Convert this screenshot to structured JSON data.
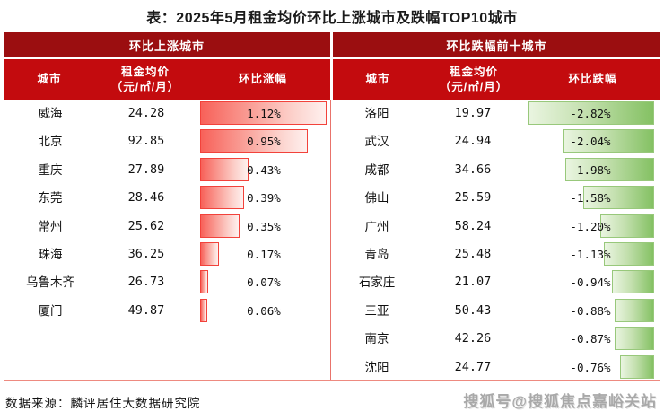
{
  "title": "表：2025年5月租金均价环比上涨城市及跌幅TOP10城市",
  "source": "数据来源：麟评居住大数据研究院",
  "watermark": "搜狐号@搜狐焦点嘉峪关站",
  "colors": {
    "band_dark_red": "#9B0E10",
    "band_bright_red": "#C30B0E",
    "table_border_pink": "#EE8A80",
    "up_bar_start": "#F86159",
    "up_bar_end": "#FEF1EF",
    "up_bar_border": "#F2423B",
    "down_bar_start": "#EAF5E1",
    "down_bar_end": "#84C163",
    "down_bar_border": "#98C87B"
  },
  "left": {
    "section_title": "环比上涨城市",
    "col_city": "城市",
    "col_rent": "租金均价",
    "col_rent_unit": "（元/㎡/月）",
    "col_change": "环比涨幅",
    "max_abs": 1.12,
    "rows": [
      {
        "city": "威海",
        "rent": "24.28",
        "pct": "1.12%",
        "value": 1.12
      },
      {
        "city": "北京",
        "rent": "92.85",
        "pct": "0.95%",
        "value": 0.95
      },
      {
        "city": "重庆",
        "rent": "27.89",
        "pct": "0.43%",
        "value": 0.43
      },
      {
        "city": "东莞",
        "rent": "28.46",
        "pct": "0.39%",
        "value": 0.39
      },
      {
        "city": "常州",
        "rent": "25.62",
        "pct": "0.35%",
        "value": 0.35
      },
      {
        "city": "珠海",
        "rent": "36.25",
        "pct": "0.17%",
        "value": 0.17
      },
      {
        "city": "乌鲁木齐",
        "rent": "26.73",
        "pct": "0.07%",
        "value": 0.07
      },
      {
        "city": "厦门",
        "rent": "49.87",
        "pct": "0.06%",
        "value": 0.06
      }
    ]
  },
  "right": {
    "section_title": "环比跌幅前十城市",
    "col_city": "城市",
    "col_rent": "租金均价",
    "col_rent_unit": "（元/㎡/月）",
    "col_change": "环比跌幅",
    "max_abs": 2.82,
    "rows": [
      {
        "city": "洛阳",
        "rent": "19.97",
        "pct": "-2.82%",
        "value": -2.82
      },
      {
        "city": "武汉",
        "rent": "24.94",
        "pct": "-2.04%",
        "value": -2.04
      },
      {
        "city": "成都",
        "rent": "34.66",
        "pct": "-1.98%",
        "value": -1.98
      },
      {
        "city": "佛山",
        "rent": "25.59",
        "pct": "-1.58%",
        "value": -1.58
      },
      {
        "city": "广州",
        "rent": "58.24",
        "pct": "-1.20%",
        "value": -1.2
      },
      {
        "city": "青岛",
        "rent": "25.48",
        "pct": "-1.13%",
        "value": -1.13
      },
      {
        "city": "石家庄",
        "rent": "21.07",
        "pct": "-0.94%",
        "value": -0.94
      },
      {
        "city": "三亚",
        "rent": "50.43",
        "pct": "-0.88%",
        "value": -0.88
      },
      {
        "city": "南京",
        "rent": "42.26",
        "pct": "-0.87%",
        "value": -0.87
      },
      {
        "city": "沈阳",
        "rent": "24.77",
        "pct": "-0.76%",
        "value": -0.76
      }
    ]
  },
  "chart_data": [
    {
      "type": "bar",
      "title": "环比上涨城市",
      "categories": [
        "威海",
        "北京",
        "重庆",
        "东莞",
        "常州",
        "珠海",
        "乌鲁木齐",
        "厦门"
      ],
      "series": [
        {
          "name": "租金均价（元/㎡/月）",
          "values": [
            24.28,
            92.85,
            27.89,
            28.46,
            25.62,
            36.25,
            26.73,
            49.87
          ]
        },
        {
          "name": "环比涨幅(%)",
          "values": [
            1.12,
            0.95,
            0.43,
            0.39,
            0.35,
            0.17,
            0.07,
            0.06
          ]
        }
      ],
      "xlabel": "环比涨幅",
      "ylabel": "城市",
      "xlim": [
        0,
        1.12
      ],
      "orientation": "horizontal",
      "grid": false,
      "legend": "none"
    },
    {
      "type": "bar",
      "title": "环比跌幅前十城市",
      "categories": [
        "洛阳",
        "武汉",
        "成都",
        "佛山",
        "广州",
        "青岛",
        "石家庄",
        "三亚",
        "南京",
        "沈阳"
      ],
      "series": [
        {
          "name": "租金均价（元/㎡/月）",
          "values": [
            19.97,
            24.94,
            34.66,
            25.59,
            58.24,
            25.48,
            21.07,
            50.43,
            42.26,
            24.77
          ]
        },
        {
          "name": "环比跌幅(%)",
          "values": [
            -2.82,
            -2.04,
            -1.98,
            -1.58,
            -1.2,
            -1.13,
            -0.94,
            -0.88,
            -0.87,
            -0.76
          ]
        }
      ],
      "xlabel": "环比跌幅",
      "ylabel": "城市",
      "xlim": [
        -2.82,
        0
      ],
      "orientation": "horizontal",
      "grid": false,
      "legend": "none"
    }
  ]
}
